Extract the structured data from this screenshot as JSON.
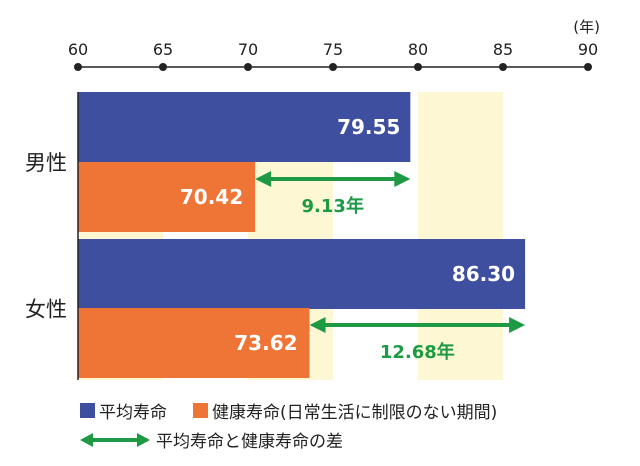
{
  "chart_data": {
    "type": "bar",
    "orientation": "horizontal",
    "unit": "(年)",
    "xlim": [
      60,
      90
    ],
    "ticks": [
      60,
      65,
      70,
      75,
      80,
      85,
      90
    ],
    "grid": "alternating yellow bands",
    "categories": [
      "男性",
      "女性"
    ],
    "series": [
      {
        "name": "平均寿命",
        "values": [
          79.55,
          86.3
        ],
        "color": "#3f4fa0"
      },
      {
        "name": "健康寿命(日常生活に制限のない期間)",
        "values": [
          70.42,
          73.62
        ],
        "color": "#ef7537"
      }
    ],
    "differences": {
      "name": "平均寿命と健康寿命の差",
      "values": [
        9.13,
        12.68
      ],
      "labels": [
        "9.13年",
        "12.68年"
      ],
      "color": "#1e9a45"
    },
    "value_labels": {
      "平均寿命": [
        "79.55",
        "86.30"
      ],
      "健康寿命": [
        "70.42",
        "73.62"
      ]
    },
    "band_color": "#fdf8d3"
  },
  "legend": {
    "life_label": "平均寿命",
    "health_label": "健康寿命(日常生活に制限のない期間)",
    "diff_label": "平均寿命と健康寿命の差"
  }
}
